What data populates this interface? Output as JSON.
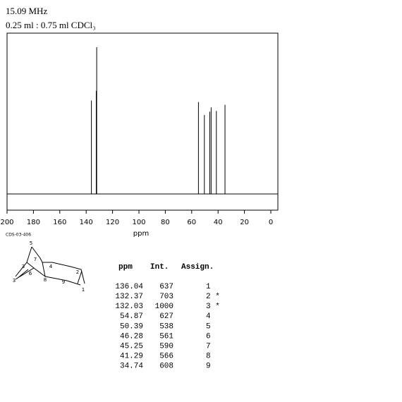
{
  "chart_data": {
    "type": "spectrum",
    "header": [
      "15.09 MHz",
      "0.25 ml : 0.75 ml CDCl₃"
    ],
    "x": [
      136.04,
      132.37,
      132.03,
      54.87,
      50.39,
      46.28,
      45.25,
      41.29,
      34.74
    ],
    "values": [
      637,
      703,
      1000,
      627,
      538,
      561,
      590,
      566,
      608
    ],
    "assign": [
      "1",
      "2 *",
      "3 *",
      "4",
      "5",
      "6",
      "7",
      "8",
      "9"
    ],
    "xlim": [
      200,
      0
    ],
    "xticks": [
      200,
      180,
      160,
      140,
      120,
      100,
      80,
      60,
      40,
      20,
      0
    ],
    "xlabel": "ppm",
    "ylim": [
      0,
      1000
    ],
    "color": "#000000"
  },
  "table": {
    "columns": [
      "ppm",
      "Int.",
      "Assign."
    ]
  },
  "structure": {
    "code": "CDS-03-406",
    "labels": [
      "5",
      "7",
      "3",
      "4",
      "2",
      "6",
      "3",
      "8",
      "9",
      "1"
    ]
  }
}
